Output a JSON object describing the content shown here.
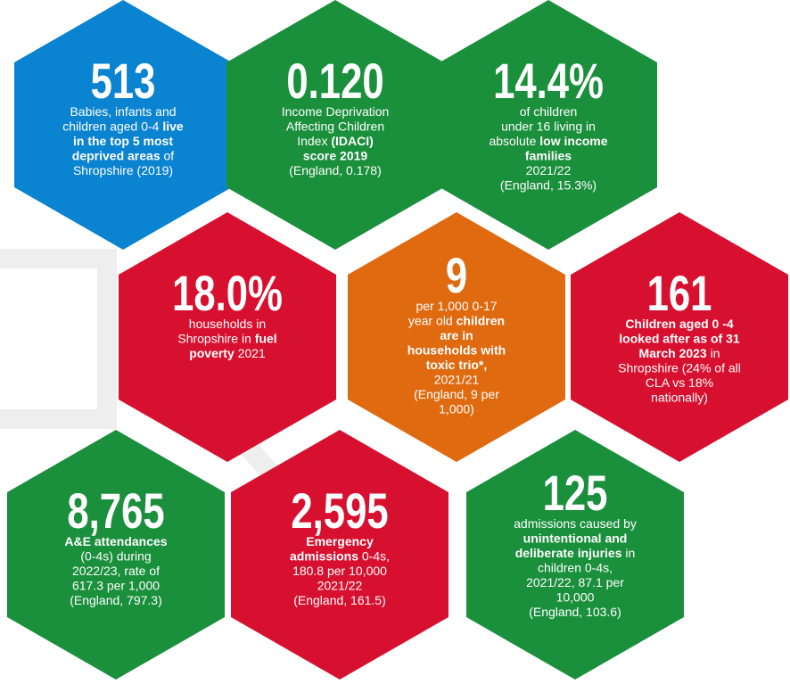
{
  "hexes": [
    {
      "number": "513",
      "color": "#0a83d0",
      "lines": [
        [
          "Babies, infants and"
        ],
        [
          "children aged 0-4 ",
          {
            "text": "live",
            "bold": true
          }
        ],
        [
          {
            "text": "in the top 5 most",
            "bold": true
          }
        ],
        [
          {
            "text": "deprived areas",
            "bold": true
          },
          " of"
        ],
        [
          "Shropshire (2019)"
        ]
      ]
    },
    {
      "number": "0.120",
      "color": "#1a8f3c",
      "lines": [
        [
          "Income Deprivation"
        ],
        [
          "Affecting Children"
        ],
        [
          "Index ",
          {
            "text": "(IDACI)",
            "bold": true
          }
        ],
        [
          {
            "text": "score 2019",
            "bold": true
          }
        ],
        [
          "(England, 0.178)"
        ]
      ]
    },
    {
      "number": "14.4%",
      "color": "#1a8f3c",
      "lines": [
        [
          "of children"
        ],
        [
          "under 16 living in"
        ],
        [
          "absolute ",
          {
            "text": "low income",
            "bold": true
          }
        ],
        [
          {
            "text": "families",
            "bold": true
          }
        ],
        [
          "2021/22"
        ],
        [
          "(England, 15.3%)"
        ]
      ]
    },
    {
      "number": "18.0%",
      "color": "#d8102f",
      "lines": [
        [
          "households in"
        ],
        [
          "Shropshire in ",
          {
            "text": "fuel",
            "bold": true
          }
        ],
        [
          {
            "text": "poverty",
            "bold": true
          },
          " 2021"
        ]
      ]
    },
    {
      "number": "9",
      "color": "#e06a10",
      "lines": [
        [
          "per 1,000 0-17"
        ],
        [
          "year old ",
          {
            "text": "children",
            "bold": true
          }
        ],
        [
          {
            "text": "are in",
            "bold": true
          }
        ],
        [
          {
            "text": "households with",
            "bold": true
          }
        ],
        [
          {
            "text": "toxic trio*,",
            "bold": true
          }
        ],
        [
          "2021/21"
        ],
        [
          "(England, 9 per"
        ],
        [
          "1,000)"
        ]
      ]
    },
    {
      "number": "161",
      "color": "#d8102f",
      "lines": [
        [
          {
            "text": "Children aged 0 -4",
            "bold": true
          }
        ],
        [
          {
            "text": "looked after as of 31",
            "bold": true
          }
        ],
        [
          {
            "text": "March 2023",
            "bold": true
          },
          " in"
        ],
        [
          "Shropshire (24% of all"
        ],
        [
          "CLA vs 18%"
        ],
        [
          "nationally)"
        ]
      ]
    },
    {
      "number": "8,765",
      "color": "#1a8f3c",
      "lines": [
        [
          {
            "text": "A&E attendances",
            "bold": true
          }
        ],
        [
          "(0-4s) during"
        ],
        [
          "2022/23, rate of"
        ],
        [
          "617.3 per 1,000"
        ],
        [
          "(England, 797.3)"
        ]
      ]
    },
    {
      "number": "2,595",
      "color": "#d8102f",
      "lines": [
        [
          {
            "text": "Emergency",
            "bold": true
          }
        ],
        [
          {
            "text": "admissions",
            "bold": true
          },
          " 0-4s,"
        ],
        [
          "180.8 per 10,000"
        ],
        [
          "2021/22"
        ],
        [
          "(England, 161.5)"
        ]
      ]
    },
    {
      "number": "125",
      "color": "#1a8f3c",
      "lines": [
        [
          "admissions caused by"
        ],
        [
          {
            "text": "unintentional and",
            "bold": true
          }
        ],
        [
          {
            "text": "deliberate injuries",
            "bold": true
          },
          " in"
        ],
        [
          "children 0-4s,"
        ],
        [
          "2021/22, 87.1 per"
        ],
        [
          "10,000"
        ],
        [
          "(England, 103.6)"
        ]
      ]
    }
  ]
}
